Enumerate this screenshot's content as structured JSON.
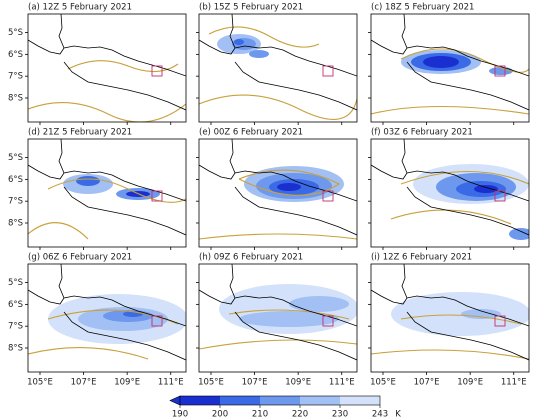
{
  "panels": [
    {
      "title": "(a) 12Z 5 February 2021"
    },
    {
      "title": "(b) 15Z 5 February 2021"
    },
    {
      "title": "(c) 18Z 5 February 2021"
    },
    {
      "title": "(d) 21Z 5 February 2021"
    },
    {
      "title": "(e) 00Z 6 February 2021"
    },
    {
      "title": "(f) 03Z 6 February 2021"
    },
    {
      "title": "(g) 06Z 6 February 2021"
    },
    {
      "title": "(h) 09Z 6 February 2021"
    },
    {
      "title": "(i) 12Z 6 February 2021"
    }
  ],
  "map": {
    "xlim": [
      104.45,
      111.7
    ],
    "ylim": [
      -9.1,
      -4.15
    ],
    "xticks": [
      {
        "value": 105,
        "label": "105°E"
      },
      {
        "value": 107,
        "label": "107°E"
      },
      {
        "value": 109,
        "label": "109°E"
      },
      {
        "value": 111,
        "label": "111°E"
      }
    ],
    "yticks": [
      {
        "value": -5,
        "label": "5°S"
      },
      {
        "value": -6,
        "label": "6°S"
      },
      {
        "value": -7,
        "label": "7°S"
      },
      {
        "value": -8,
        "label": "8°S"
      }
    ]
  },
  "colorbar": {
    "bounds": [
      190,
      200,
      210,
      220,
      230,
      243
    ],
    "colors": [
      "#1a2fd0",
      "#3a6ae6",
      "#6d98ee",
      "#a3c0f4",
      "#d3e2fa"
    ],
    "unit": "K"
  }
}
